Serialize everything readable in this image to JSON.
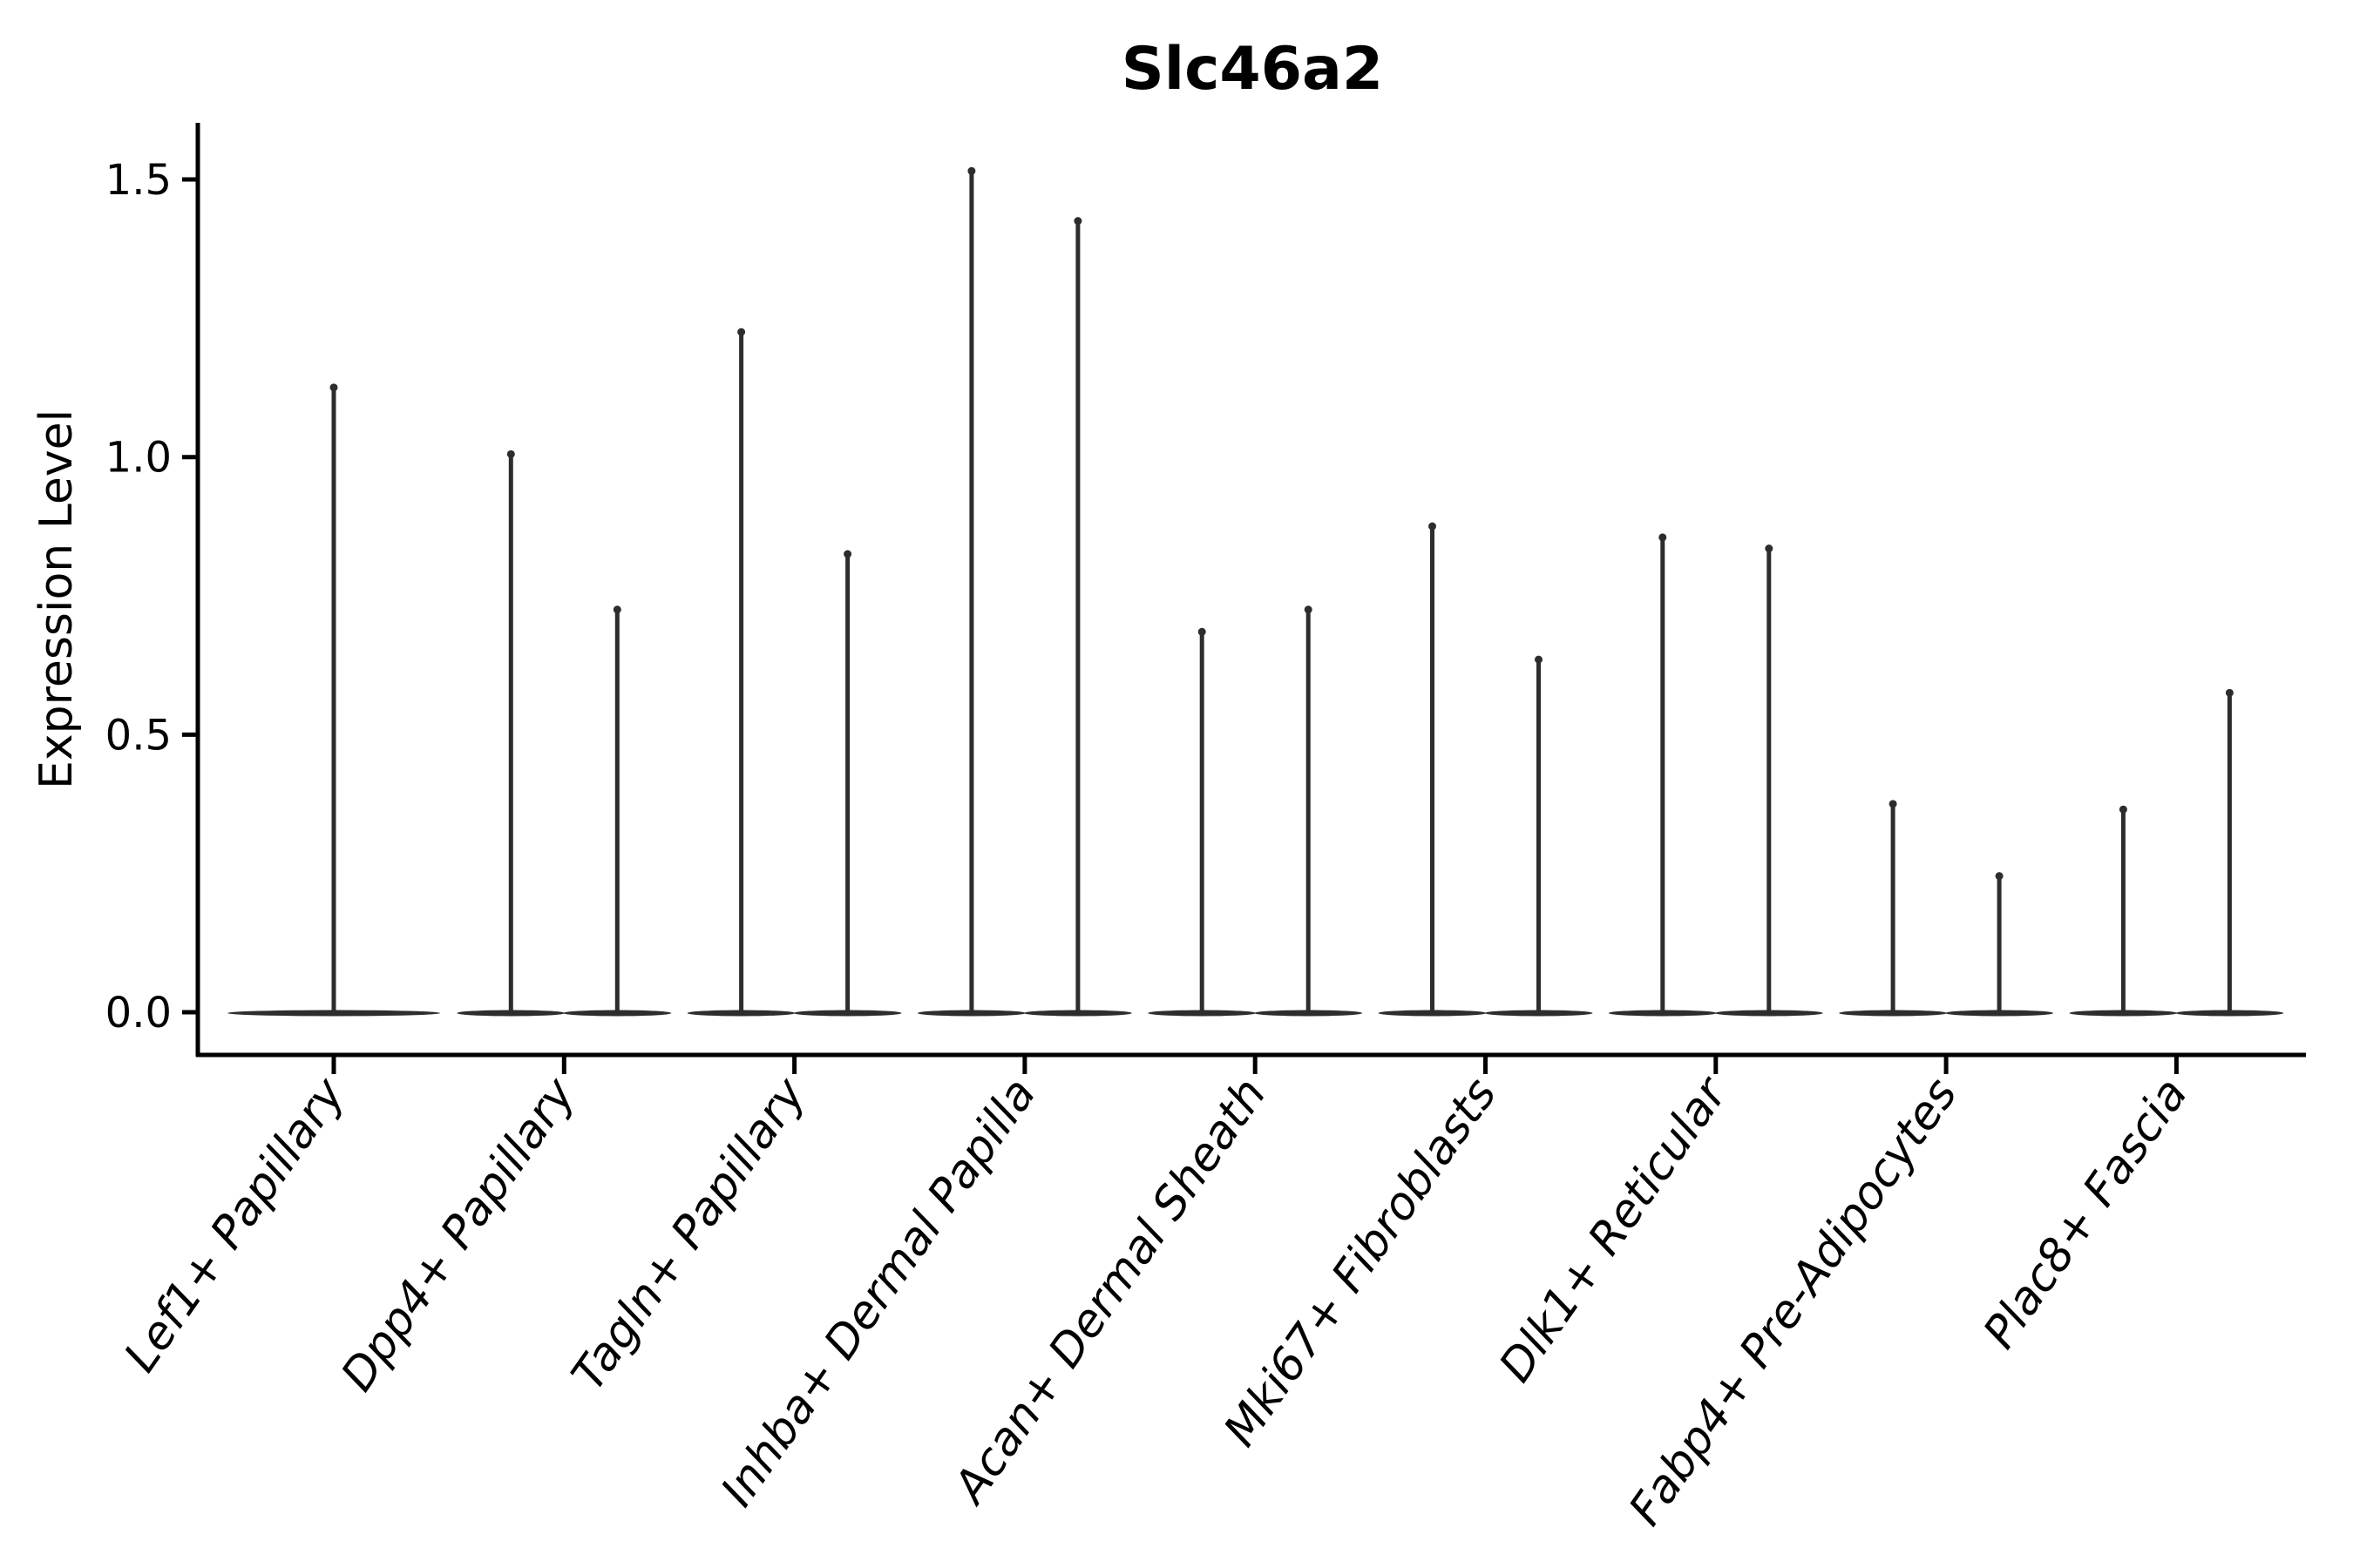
{
  "chart_data": {
    "type": "violin",
    "title": "Slc46a2",
    "xlabel": "",
    "ylabel": "Expression Level",
    "yticks": [
      0.0,
      0.5,
      1.0,
      1.5
    ],
    "ylim": [
      -0.08,
      1.6
    ],
    "grid": false,
    "legend": "none",
    "note": "Split violin plot: each violin is an extremely flat lens at y=0 (most cells have zero expression) with a thin vertical spike rising to the maximum expression value. The first category shows a single centered violin; all others show two side-by-side split violins.",
    "categories": [
      {
        "label": "Lef1+ Papillary",
        "spike_maxima": [
          1.13
        ]
      },
      {
        "label": "Dpp4+ Papillary",
        "spike_maxima": [
          1.01,
          0.73
        ]
      },
      {
        "label": "Tagln+ Papillary",
        "spike_maxima": [
          1.23,
          0.83
        ]
      },
      {
        "label": "Inhba+ Dermal Papilla",
        "spike_maxima": [
          1.52,
          1.43
        ]
      },
      {
        "label": "Acan+ Dermal Sheath",
        "spike_maxima": [
          0.69,
          0.73
        ]
      },
      {
        "label": "Mki67+ Fibroblasts",
        "spike_maxima": [
          0.88,
          0.64
        ]
      },
      {
        "label": "Dlk1+ Reticular",
        "spike_maxima": [
          0.86,
          0.84
        ]
      },
      {
        "label": "Fabp4+ Pre-Adipocytes",
        "spike_maxima": [
          0.38,
          0.25
        ]
      },
      {
        "label": "Plac8+ Fascia",
        "spike_maxima": [
          0.37,
          0.58
        ]
      }
    ],
    "colors": {
      "violin_line": "#2d2d2d",
      "axis": "#000000",
      "text": "#000000",
      "background": "#ffffff"
    }
  }
}
